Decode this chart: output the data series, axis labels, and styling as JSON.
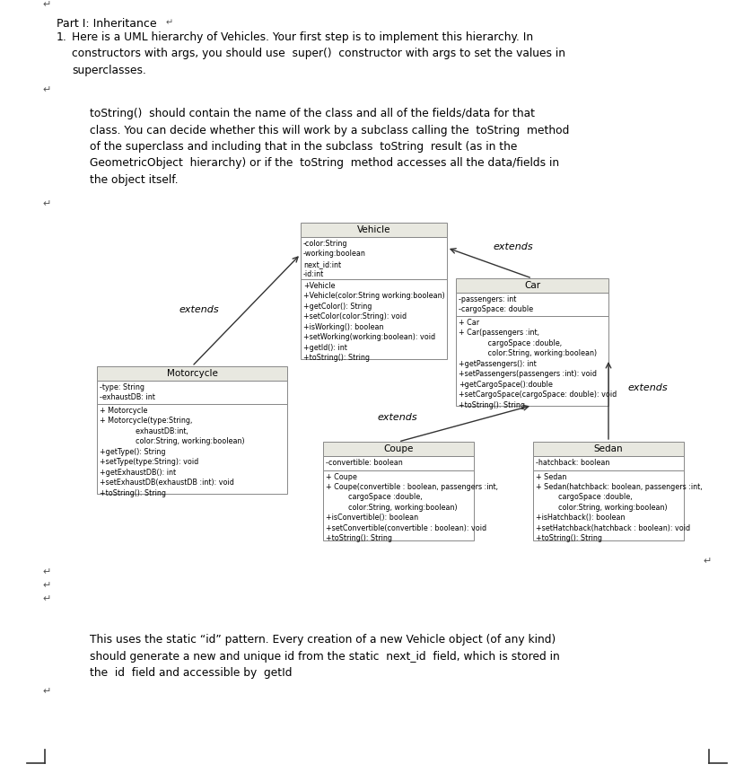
{
  "vehicle_title": "Vehicle",
  "vehicle_fields": "-color:String\n-working:boolean\nnext_id:int\n-id:int",
  "vehicle_methods": "+Vehicle\n+Vehicle(color:String working:boolean)\n+getColor(): String\n+setColor(color:String): void\n+isWorking(): boolean\n+setWorking(working:boolean): void\n+getId(): int\n+toString(): String",
  "car_title": "Car",
  "car_fields": "-passengers: int\n-cargoSpace: double",
  "car_methods": "+ Car\n+ Car(passengers :int,\n             cargoSpace :double,\n             color:String, working:boolean)\n+getPassengers(): int\n+setPassengers(passengers :int): void\n+getCargoSpace():double\n+setCargoSpace(cargoSpace: double): void\n+toString(): String",
  "motorcycle_title": "Motorcycle",
  "motorcycle_fields": "-type: String\n-exhaustDB: int",
  "motorcycle_methods": "+ Motorcycle\n+ Motorcycle(type:String,\n                exhaustDB:int,\n                color:String, working:boolean)\n+getType(): String\n+setType(type:String): void\n+getExhaustDB(): int\n+setExhaustDB(exhaustDB :int): void\n+toString(): String",
  "coupe_title": "Coupe",
  "coupe_fields": "-convertible: boolean",
  "coupe_methods": "+ Coupe\n+ Coupe(convertible : boolean, passengers :int,\n          cargoSpace :double,\n          color:String, working:boolean)\n+isConvertible(): boolean\n+setConvertible(convertible : boolean): void\n+toString(): String",
  "sedan_title": "Sedan",
  "sedan_fields": "-hatchback: boolean",
  "sedan_methods": "+ Sedan\n+ Sedan(hatchback: boolean, passengers :int,\n          cargoSpace :double,\n          color:String, working:boolean)\n+isHatchback(): boolean\n+setHatchback(hatchback : boolean): void\n+toString(): String",
  "bg_color": "#ffffff",
  "box_edge": "#888888",
  "title_fill": "#e8e8e0",
  "title_sep_color": "#aaaaaa"
}
